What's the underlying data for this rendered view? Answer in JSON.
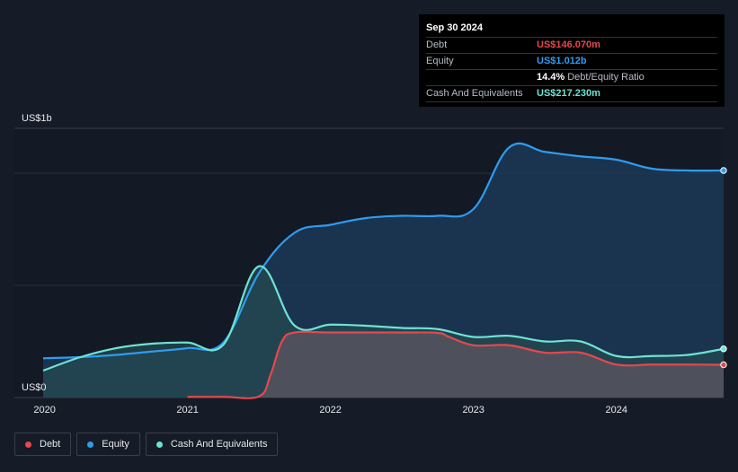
{
  "tooltip": {
    "date": "Sep 30 2024",
    "rows": [
      {
        "label": "Debt",
        "value": "US$146.070m",
        "color": "#e5484d"
      },
      {
        "label": "Equity",
        "value": "US$1.012b",
        "color": "#2f9cf0"
      },
      {
        "label": "",
        "value": "14.4%",
        "sub": "Debt/Equity Ratio",
        "color": "#ffffff"
      },
      {
        "label": "Cash And Equivalents",
        "value": "US$217.230m",
        "color": "#6ee3d3"
      }
    ]
  },
  "legend": [
    {
      "label": "Debt",
      "color": "#e5484d"
    },
    {
      "label": "Equity",
      "color": "#2f9cf0"
    },
    {
      "label": "Cash And Equivalents",
      "color": "#6ee3d3"
    }
  ],
  "chart_data": {
    "type": "area",
    "title": "",
    "xlabel": "",
    "ylabel": "",
    "y_top_label": "US$1b",
    "y_bottom_label": "US$0",
    "ylim": [
      0,
      1.2
    ],
    "y_unit": "US$b",
    "xlim": [
      2019.99,
      2024.75
    ],
    "x_ticks": [
      2020,
      2021,
      2022,
      2023,
      2024
    ],
    "x_tick_labels": [
      "2020",
      "2021",
      "2022",
      "2023",
      "2024"
    ],
    "grid": true,
    "legend_position": "bottom-left",
    "series": [
      {
        "name": "Debt",
        "color": "#e5484d",
        "fill": "#5e5560",
        "x": [
          2021.0,
          2021.25,
          2021.5,
          2021.58,
          2021.66,
          2021.75,
          2022.0,
          2022.5,
          2022.75,
          2022.83,
          2023.0,
          2023.25,
          2023.5,
          2023.75,
          2024.0,
          2024.25,
          2024.5,
          2024.75
        ],
        "y": [
          0.003,
          0.003,
          0.005,
          0.1,
          0.25,
          0.29,
          0.29,
          0.29,
          0.288,
          0.27,
          0.233,
          0.233,
          0.2,
          0.2,
          0.147,
          0.147,
          0.147,
          0.146
        ]
      },
      {
        "name": "Equity",
        "color": "#2f9cf0",
        "fill": "#1c3a57",
        "x": [
          2019.99,
          2020.25,
          2020.5,
          2020.75,
          2021.0,
          2021.25,
          2021.5,
          2021.75,
          2022.0,
          2022.25,
          2022.5,
          2022.75,
          2023.0,
          2023.25,
          2023.5,
          2023.75,
          2024.0,
          2024.25,
          2024.5,
          2024.75
        ],
        "y": [
          0.175,
          0.18,
          0.19,
          0.205,
          0.22,
          0.245,
          0.555,
          0.735,
          0.77,
          0.8,
          0.81,
          0.81,
          0.84,
          1.115,
          1.095,
          1.075,
          1.06,
          1.02,
          1.012,
          1.012
        ]
      },
      {
        "name": "Cash And Equivalents",
        "color": "#6ee3d3",
        "fill": "#244a50",
        "x": [
          2019.99,
          2020.25,
          2020.5,
          2020.75,
          2021.0,
          2021.25,
          2021.5,
          2021.75,
          2022.0,
          2022.25,
          2022.5,
          2022.75,
          2023.0,
          2023.25,
          2023.5,
          2023.75,
          2024.0,
          2024.25,
          2024.5,
          2024.75
        ],
        "y": [
          0.12,
          0.18,
          0.22,
          0.24,
          0.245,
          0.235,
          0.585,
          0.32,
          0.325,
          0.32,
          0.31,
          0.305,
          0.27,
          0.275,
          0.25,
          0.25,
          0.185,
          0.185,
          0.19,
          0.217
        ]
      }
    ]
  }
}
